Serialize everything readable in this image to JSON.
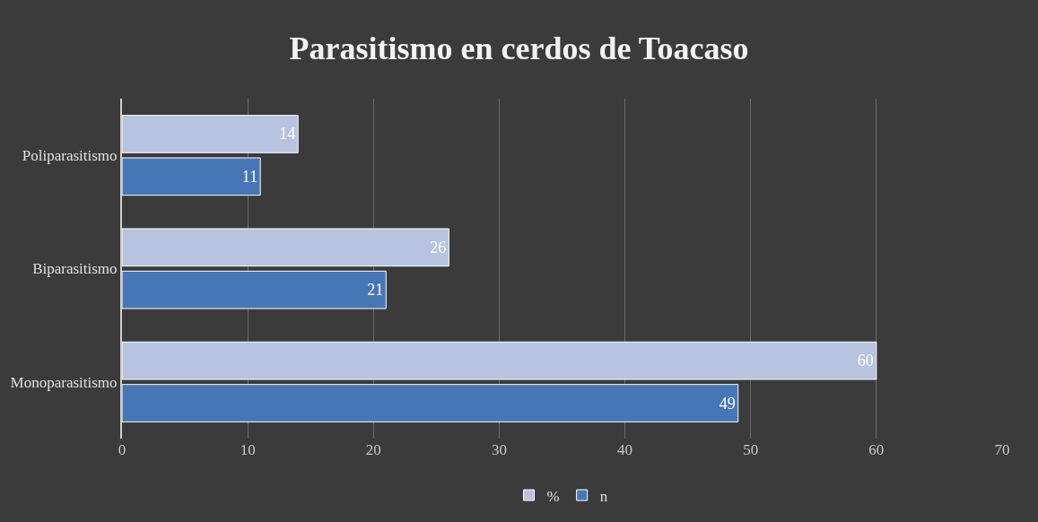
{
  "chart_data": {
    "type": "bar",
    "orientation": "horizontal",
    "title": "Parasitismo en cerdos de Toacaso",
    "categories": [
      "Poliparasitismo",
      "Biparasitismo",
      "Monoparasitismo"
    ],
    "series": [
      {
        "name": "%",
        "color": "#b7c3df",
        "values": [
          14,
          26,
          60
        ]
      },
      {
        "name": "n",
        "color": "#4676b6",
        "values": [
          11,
          21,
          49
        ]
      }
    ],
    "xlim": [
      0,
      70
    ],
    "xticks": [
      0,
      10,
      20,
      30,
      40,
      50,
      60,
      70
    ],
    "grid": "x",
    "legend": "bottom",
    "data_labels": true
  }
}
